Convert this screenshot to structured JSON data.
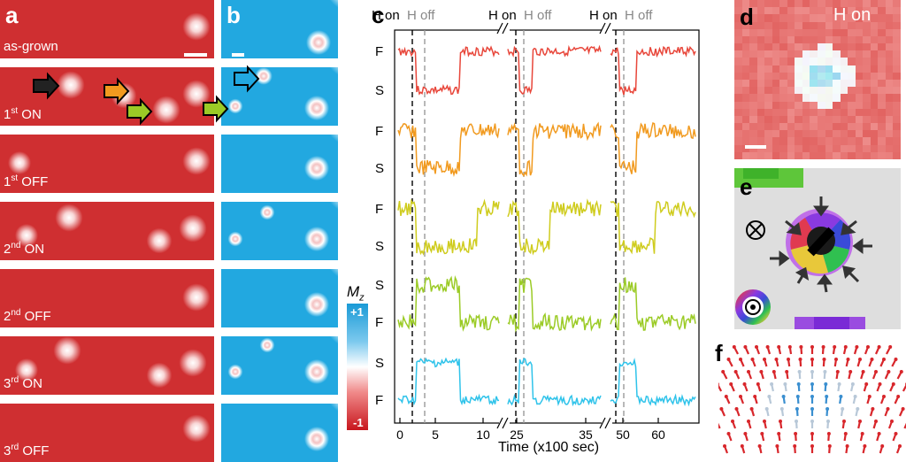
{
  "panel_labels": {
    "a": "a",
    "b": "b",
    "c": "c",
    "d": "d",
    "e": "e",
    "f": "f"
  },
  "rows": [
    {
      "main": "as-grown",
      "sup": "",
      "rest": ""
    },
    {
      "main": "1",
      "sup": "st",
      "rest": " ON"
    },
    {
      "main": "1",
      "sup": "st",
      "rest": " OFF"
    },
    {
      "main": "2",
      "sup": "nd",
      "rest": " ON"
    },
    {
      "main": "2",
      "sup": "nd",
      "rest": " OFF"
    },
    {
      "main": "3",
      "sup": "rd",
      "rest": " ON"
    },
    {
      "main": "3",
      "sup": "rd",
      "rest": " OFF"
    }
  ],
  "colorbar": {
    "title": "M",
    "title_sub": "z",
    "top": "+1",
    "bottom": "-1"
  },
  "panel_d": {
    "label": "H on"
  },
  "chart_data": {
    "type": "line",
    "header": [
      {
        "on": "H on",
        "off": "H off"
      },
      {
        "on": "H on",
        "off": "H off"
      },
      {
        "on": "H on",
        "off": "H off"
      }
    ],
    "ylabel": "M",
    "ylabel_sub": "z",
    "xlabel": "Time (x100 sec)",
    "xticks": [
      "0",
      "5",
      "10",
      "25",
      "35",
      "50",
      "60"
    ],
    "state_labels": [
      "F",
      "S",
      "F",
      "S",
      "F",
      "S",
      "S",
      "F",
      "S",
      "F"
    ],
    "series": [
      {
        "color": "#e8473b",
        "high_first": true
      },
      {
        "color": "#f19a1f",
        "high_first": true
      },
      {
        "color": "#cfcc1e",
        "high_first": true
      },
      {
        "color": "#9bcb26",
        "high_first": false
      },
      {
        "color": "#2fc3ea",
        "high_first": false
      }
    ]
  }
}
